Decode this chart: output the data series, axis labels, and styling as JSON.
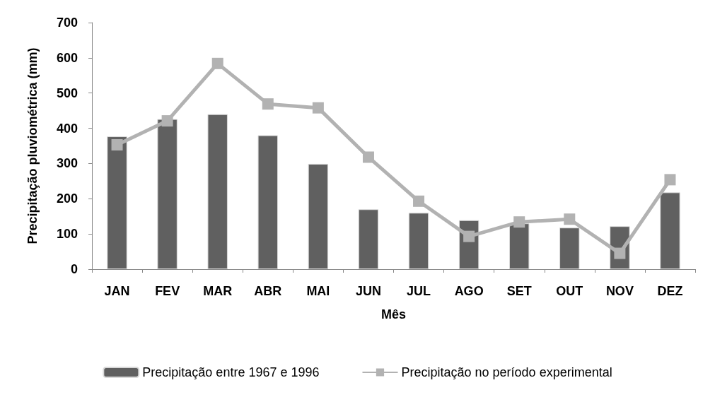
{
  "chart_data": {
    "type": "bar",
    "xlabel": "Mês",
    "ylabel": "Precipitação pluviométrica (mm)",
    "categories": [
      "JAN",
      "FEV",
      "MAR",
      "ABR",
      "MAI",
      "JUN",
      "JUL",
      "AGO",
      "SET",
      "OUT",
      "NOV",
      "DEZ"
    ],
    "series": [
      {
        "name": "Precipitação entre 1967 e 1996",
        "color": "#606060",
        "values": [
          377,
          426,
          440,
          380,
          299,
          170,
          160,
          139,
          130,
          118,
          122,
          218
        ]
      },
      {
        "name": "Precipitação no período experimental",
        "type": "line",
        "color": "#b2b2b2",
        "marker": "square",
        "values": [
          353,
          421,
          584,
          469,
          458,
          318,
          193,
          93,
          134,
          142,
          45,
          254
        ]
      }
    ],
    "ylim": [
      0,
      700
    ],
    "yticks": [
      0,
      100,
      200,
      300,
      400,
      500,
      600,
      700
    ],
    "grid": false,
    "legend": "bottom"
  }
}
